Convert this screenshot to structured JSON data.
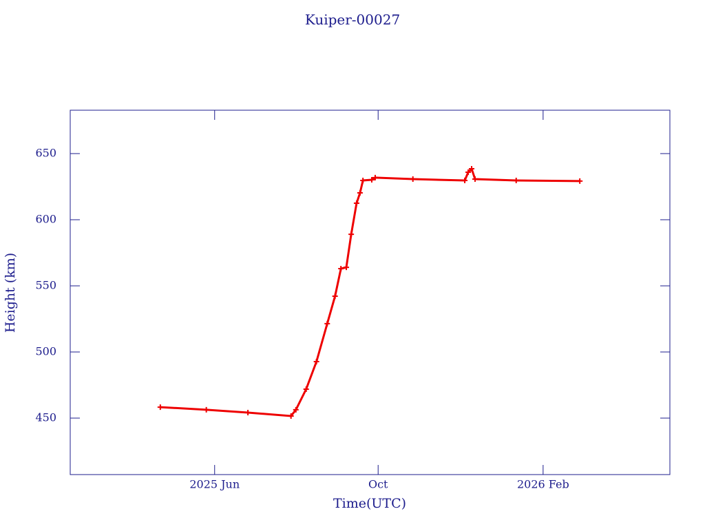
{
  "chart_data": {
    "type": "line",
    "title": "Kuiper-00027",
    "x_label": "Time(UTC)",
    "y_label": "Height (km)",
    "xlim": [
      2025.119,
      2026.344
    ],
    "ylim": [
      407.3,
      682.8
    ],
    "xticks": [
      {
        "value": 2025.414,
        "label": "2025 Jun"
      },
      {
        "value": 2025.748,
        "label": "Oct"
      },
      {
        "value": 2026.085,
        "label": "2026 Feb"
      }
    ],
    "yticks": [
      450,
      500,
      550,
      600,
      650
    ],
    "series": [
      {
        "color": "#ee0000",
        "x": [
          2025.303,
          2025.397,
          2025.482,
          2025.57,
          2025.58,
          2025.601,
          2025.622,
          2025.644,
          2025.66,
          2025.672,
          2025.683,
          2025.693,
          2025.704,
          2025.711,
          2025.717,
          2025.735,
          2025.742,
          2025.819,
          2025.925,
          2025.932,
          2025.939,
          2025.946,
          2026.03,
          2026.16
        ],
        "values": [
          458.3,
          456.3,
          454.2,
          451.6,
          456.3,
          471.9,
          492.7,
          521.4,
          542.2,
          563.0,
          564.0,
          589.0,
          612.5,
          620.3,
          629.7,
          630.2,
          631.8,
          630.7,
          629.7,
          635.9,
          638.5,
          630.7,
          629.7,
          629.2
        ]
      }
    ]
  }
}
